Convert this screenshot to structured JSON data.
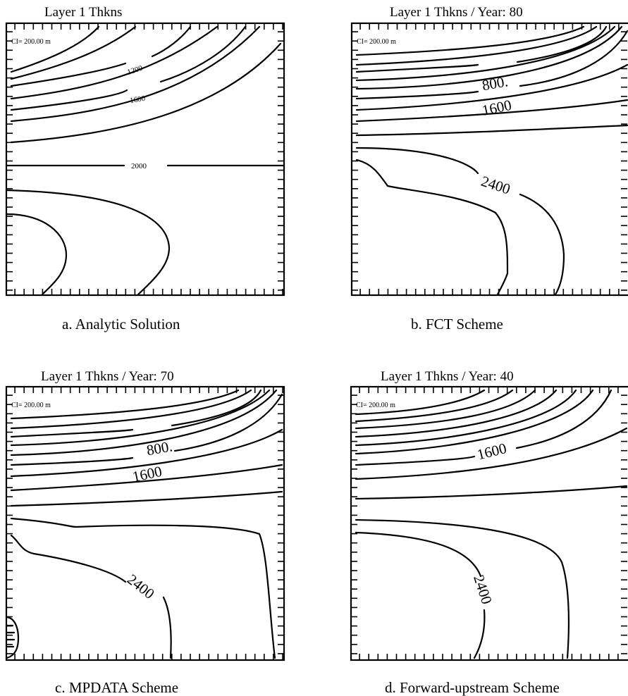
{
  "figure": {
    "panels": [
      {
        "id": "a",
        "title": "Layer  1 Thkns",
        "caption": "a. Analytic Solution",
        "ci_label": "CI= 200.00 m",
        "contour_labels": [
          "1200",
          "1600",
          "2000"
        ]
      },
      {
        "id": "b",
        "title": "Layer  1 Thkns / Year:   80",
        "caption": "b.  FCT Scheme",
        "ci_label": "CI= 200.00 m",
        "contour_labels": [
          "800.",
          "1600",
          "2400"
        ]
      },
      {
        "id": "c",
        "title": "Layer  1 Thkns / Year:   70",
        "caption": "c.  MPDATA Scheme",
        "ci_label": "CI= 200.00 m",
        "contour_labels": [
          "800.",
          "1600",
          "2400"
        ]
      },
      {
        "id": "d",
        "title": "Layer  1 Thkns / Year:   40",
        "caption": "d. Forward-upstream Scheme",
        "ci_label": "CI= 200.00 m",
        "contour_labels": [
          "1600",
          "2400"
        ]
      }
    ]
  },
  "chart_data": [
    {
      "type": "contour",
      "title": "Layer  1 Thkns",
      "variable": "Layer 1 thickness",
      "units": "m",
      "contour_interval": 200,
      "labeled_levels": [
        1200,
        1600,
        2000
      ]
    },
    {
      "type": "contour",
      "title": "Layer  1 Thkns / Year:   80",
      "variable": "Layer 1 thickness",
      "units": "m",
      "year": 80,
      "contour_interval": 200,
      "labeled_levels": [
        800,
        1600,
        2400
      ]
    },
    {
      "type": "contour",
      "title": "Layer  1 Thkns / Year:   70",
      "variable": "Layer 1 thickness",
      "units": "m",
      "year": 70,
      "contour_interval": 200,
      "labeled_levels": [
        800,
        1600,
        2400
      ]
    },
    {
      "type": "contour",
      "title": "Layer  1 Thkns / Year:   40",
      "variable": "Layer 1 thickness",
      "units": "m",
      "year": 40,
      "contour_interval": 200,
      "labeled_levels": [
        1600,
        2400
      ]
    }
  ]
}
